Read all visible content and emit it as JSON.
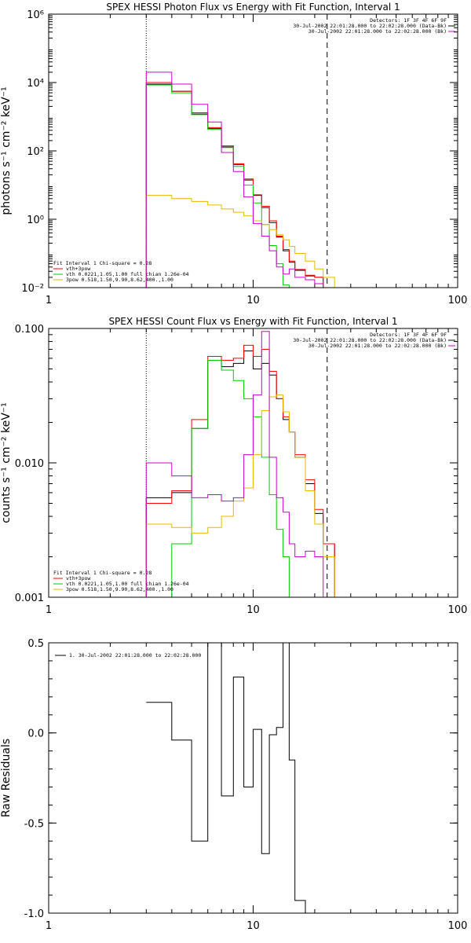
{
  "chart_data": [
    {
      "type": "line",
      "title": "SPEX HESSI Photon Flux vs Energy with Fit Function, Interval 1",
      "ylabel": "photons s⁻¹ cm⁻² keV⁻¹",
      "xscale": "log",
      "yscale": "log",
      "xlim": [
        1,
        100
      ],
      "ylim": [
        0.01,
        1000000
      ],
      "xticks": [
        1,
        10,
        100
      ],
      "xticklabels": [
        "1",
        "10",
        "100"
      ],
      "yticks": [
        0.01,
        1,
        100,
        10000,
        1000000
      ],
      "yticklabels": [
        "10⁻²",
        "10⁰",
        "10²",
        "10⁴",
        "10⁶"
      ],
      "vlines": [
        {
          "x": 3,
          "style": "dotted",
          "color": "#000000"
        },
        {
          "x": 23,
          "style": "dashed",
          "color": "#000000"
        }
      ],
      "header_lines": [
        {
          "text": "Detectors: 1F 3F 4F 6F 9F",
          "color": "#000000"
        },
        {
          "text": "30-Jul-2002 22:01:28.000 to 22:02:28.000 (Data-Bk)",
          "color": "#000000"
        },
        {
          "text": "30-Jul-2002 22:01:28.000 to 22:02:28.000 (Bk)",
          "color": "#cc00cc"
        }
      ],
      "legend_position": "bottom-left",
      "legend": [
        {
          "text": "Fit Interval 1    Chi-square = 0.28",
          "color": "#000000"
        },
        {
          "text": "vth+3pow",
          "color": "#ff0000"
        },
        {
          "text": "vth 0.0221,1.05,1.00  full chian 1.26e-04",
          "color": "#00cc00"
        },
        {
          "text": "3pow 0.518,1.50,9.90,8.62,400.,1.00",
          "color": "#e6b800"
        }
      ],
      "x_edges": [
        3,
        4,
        5,
        6,
        7,
        8,
        9,
        10,
        11,
        12,
        13,
        14,
        15,
        16,
        18,
        20,
        22,
        25
      ],
      "series": [
        {
          "color": "#000000",
          "values": [
            9000,
            5500,
            1200,
            450,
            130,
            40,
            14,
            5,
            2.2,
            0.8,
            0.3,
            0.12,
            0.055,
            0.032,
            0.022,
            0.02,
            null
          ]
        },
        {
          "color": "#ff0000",
          "values": [
            10000,
            5600,
            1300,
            480,
            140,
            42,
            15,
            5.2,
            2.4,
            0.9,
            0.32,
            0.13,
            0.06,
            0.034,
            0.023,
            0.02,
            null
          ]
        },
        {
          "color": "#00cc00",
          "values": [
            8500,
            5000,
            1150,
            430,
            125,
            35,
            10,
            3,
            0.7,
            0.17,
            0.05,
            0.012,
            0.006,
            null,
            null,
            null,
            null
          ]
        },
        {
          "color": "#e6b800",
          "values": [
            5,
            4,
            3.3,
            2.6,
            2.0,
            1.6,
            1.25,
            0.9,
            0.7,
            0.5,
            0.35,
            0.25,
            0.16,
            0.1,
            0.06,
            0.035,
            0.02
          ]
        },
        {
          "color": "#cc00cc",
          "values": [
            20000,
            9000,
            2300,
            700,
            90,
            25,
            4.5,
            0.75,
            0.32,
            0.12,
            0.04,
            0.025,
            0.035,
            0.02,
            0.017,
            0.013,
            null
          ]
        }
      ]
    },
    {
      "type": "line",
      "title": "SPEX HESSI Count Flux vs Energy with Fit Function, Interval 1",
      "ylabel": "counts s⁻¹ cm⁻² keV⁻¹",
      "xscale": "log",
      "yscale": "log",
      "xlim": [
        1,
        100
      ],
      "ylim": [
        0.001,
        0.1
      ],
      "xticks": [
        1,
        10,
        100
      ],
      "xticklabels": [
        "1",
        "10",
        "100"
      ],
      "yticks": [
        0.001,
        0.01,
        0.1
      ],
      "yticklabels": [
        "0.001",
        "0.010",
        "0.100"
      ],
      "vlines": [
        {
          "x": 3,
          "style": "dotted",
          "color": "#000000"
        },
        {
          "x": 23,
          "style": "dashed",
          "color": "#000000"
        }
      ],
      "header_lines": [
        {
          "text": "Detectors: 1F 3F 4F 6F 9F",
          "color": "#000000"
        },
        {
          "text": "30-Jul-2002 22:01:28.000 to 22:02:28.000 (Data-Bk)",
          "color": "#000000"
        },
        {
          "text": "30-Jul-2002 22:01:28.000 to 22:02:28.000 (Bk)",
          "color": "#cc00cc"
        }
      ],
      "legend_position": "bottom-left",
      "legend": [
        {
          "text": "Fit Interval 1    Chi-square = 0.28",
          "color": "#000000"
        },
        {
          "text": "vth+3pow",
          "color": "#ff0000"
        },
        {
          "text": "vth 0.0221,1.05,1.00  full chian 1.26e-04",
          "color": "#00cc00"
        },
        {
          "text": "3pow 0.518,1.50,9.90,8.62,400.,1.00",
          "color": "#e6b800"
        }
      ],
      "x_edges": [
        3,
        4,
        5,
        6,
        7,
        8,
        9,
        10,
        11,
        12,
        13,
        14,
        15,
        16,
        18,
        20,
        22,
        25,
        28
      ],
      "series": [
        {
          "color": "#000000",
          "values": [
            0.0055,
            0.006,
            0.018,
            0.058,
            0.052,
            0.055,
            0.068,
            0.05,
            0.055,
            0.045,
            0.03,
            0.021,
            0.017,
            0.011,
            0.007,
            0.0042,
            0.0025,
            null
          ]
        },
        {
          "color": "#ff0000",
          "values": [
            0.005,
            0.0062,
            0.021,
            0.062,
            0.058,
            0.06,
            0.075,
            0.062,
            0.07,
            0.048,
            0.03,
            0.022,
            0.017,
            0.0115,
            0.0075,
            0.0045,
            0.0025,
            null
          ]
        },
        {
          "color": "#00cc00",
          "values": [
            0.001,
            0.0025,
            0.018,
            0.058,
            0.049,
            0.041,
            0.03,
            0.022,
            0.011,
            0.0058,
            0.0032,
            0.002,
            0.001,
            null,
            null,
            null,
            null,
            null
          ]
        },
        {
          "color": "#e6b800",
          "values": [
            0.0035,
            0.0033,
            0.003,
            0.0033,
            0.004,
            0.0052,
            0.0065,
            0.0115,
            0.0245,
            0.031,
            0.032,
            0.024,
            0.017,
            0.011,
            0.0062,
            0.0035,
            0.002,
            0.001
          ]
        },
        {
          "color": "#cc00cc",
          "values": [
            0.01,
            0.008,
            0.0055,
            0.0058,
            0.0052,
            0.0055,
            0.0115,
            0.032,
            0.095,
            0.011,
            0.0055,
            0.0043,
            0.0025,
            0.002,
            0.0022,
            0.002,
            0.001,
            null
          ]
        }
      ]
    },
    {
      "type": "line",
      "title": "",
      "ylabel": "Raw Residuals",
      "xscale": "log",
      "yscale": "linear",
      "xlim": [
        1,
        100
      ],
      "ylim": [
        -1.0,
        0.5
      ],
      "xticks": [
        1,
        10,
        100
      ],
      "xticklabels": [
        "1",
        "10",
        "100"
      ],
      "yticks": [
        -1.0,
        -0.5,
        0.0,
        0.5
      ],
      "yticklabels": [
        "-1.0",
        "-0.5",
        "0.0",
        "0.5"
      ],
      "legend_position": "top-left",
      "legend": [
        {
          "text": "1. 30-Jul-2002 22:01:28.000 to 22:02:28.000",
          "color": "#000000"
        }
      ],
      "x_edges": [
        3,
        4,
        5,
        6,
        7,
        8,
        9,
        10,
        11,
        12,
        13,
        14,
        15,
        16,
        18,
        20,
        22
      ],
      "series": [
        {
          "color": "#000000",
          "values": [
            0.17,
            -0.04,
            -0.6,
            0.5,
            -0.35,
            0.31,
            -0.3,
            0.02,
            -0.67,
            -0.01,
            0.03,
            0.51,
            -0.15,
            -0.93,
            null,
            null
          ]
        }
      ]
    }
  ]
}
